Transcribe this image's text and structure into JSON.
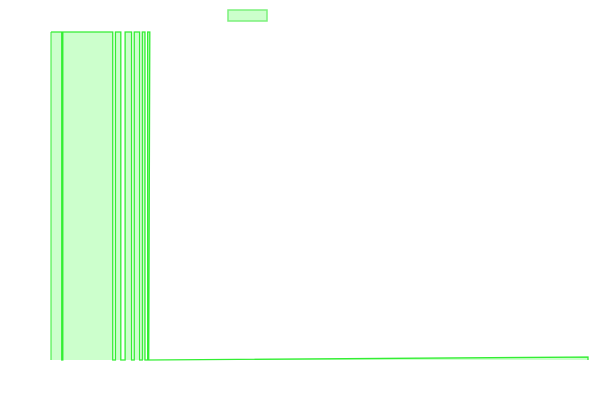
{
  "chart_data": {
    "type": "area",
    "title": "",
    "xlabel": "",
    "ylabel": "",
    "grid": false,
    "legend": {
      "position": "top-center",
      "entries": [
        {
          "label": "",
          "color": "#7CF07C"
        }
      ]
    },
    "xlim": [
      0,
      100
    ],
    "ylim": [
      0,
      100
    ],
    "series": [
      {
        "color_stroke": "#33EE33",
        "color_fill": "#CCFFCC",
        "points": [
          [
            0,
            100
          ],
          [
            2,
            100
          ],
          [
            2,
            0
          ],
          [
            2.2,
            0
          ],
          [
            2.2,
            100
          ],
          [
            11.5,
            100
          ],
          [
            11.5,
            0
          ],
          [
            12,
            0
          ],
          [
            12,
            100
          ],
          [
            13,
            100
          ],
          [
            13,
            0
          ],
          [
            13.8,
            0
          ],
          [
            13.8,
            100
          ],
          [
            15,
            100
          ],
          [
            15,
            0
          ],
          [
            15.5,
            0
          ],
          [
            15.5,
            100
          ],
          [
            16.5,
            100
          ],
          [
            16.5,
            0
          ],
          [
            17,
            0
          ],
          [
            17,
            100
          ],
          [
            17.5,
            100
          ],
          [
            17.5,
            0
          ],
          [
            18,
            0
          ],
          [
            18,
            100
          ],
          [
            18.4,
            100
          ],
          [
            18.2,
            0
          ],
          [
            100,
            0.9
          ],
          [
            100,
            0
          ]
        ]
      }
    ]
  }
}
